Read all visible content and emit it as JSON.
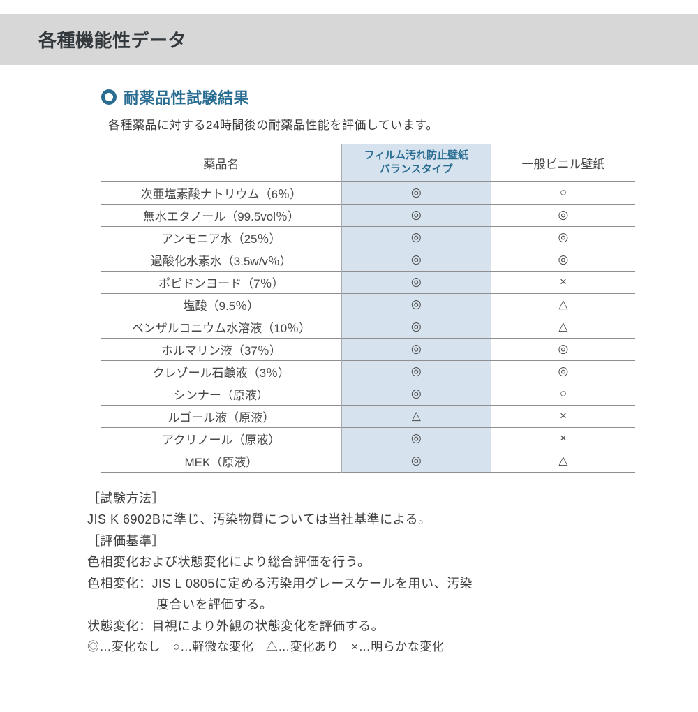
{
  "header": {
    "title": "各種機能性データ"
  },
  "section": {
    "title": "耐薬品性試験結果",
    "subtitle": "各種薬品に対する24時間後の耐薬品性能を評価しています。",
    "bullet_color": "#2a6d92"
  },
  "table": {
    "columns": {
      "name": "薬品名",
      "film_line1": "フィルム汚れ防止壁紙",
      "film_line2": "バランスタイプ",
      "vinyl": "一般ビニル壁紙"
    },
    "highlight_bg": "#d6e2ed",
    "border_color": "#8f8f8f",
    "rows": [
      {
        "name": "次亜塩素酸ナトリウム（6％）",
        "film": "◎",
        "vinyl": "○"
      },
      {
        "name": "無水エタノール（99.5vol％）",
        "film": "◎",
        "vinyl": "◎"
      },
      {
        "name": "アンモニア水（25％）",
        "film": "◎",
        "vinyl": "◎"
      },
      {
        "name": "過酸化水素水（3.5w/v％）",
        "film": "◎",
        "vinyl": "◎"
      },
      {
        "name": "ポピドンヨード（7％）",
        "film": "◎",
        "vinyl": "×"
      },
      {
        "name": "塩酸（9.5％）",
        "film": "◎",
        "vinyl": "△"
      },
      {
        "name": "ベンザルコニウム水溶液（10％）",
        "film": "◎",
        "vinyl": "△"
      },
      {
        "name": "ホルマリン液（37％）",
        "film": "◎",
        "vinyl": "◎"
      },
      {
        "name": "クレゾール石鹸液（3％）",
        "film": "◎",
        "vinyl": "◎"
      },
      {
        "name": "シンナー（原液）",
        "film": "◎",
        "vinyl": "○"
      },
      {
        "name": "ルゴール液（原液）",
        "film": "△",
        "vinyl": "×"
      },
      {
        "name": "アクリノール（原液）",
        "film": "◎",
        "vinyl": "×"
      },
      {
        "name": "MEK（原液）",
        "film": "◎",
        "vinyl": "△"
      }
    ]
  },
  "notes": {
    "method_label": "［試験方法］",
    "method_text": "JIS K 6902Bに準じ、汚染物質については当社基準による。",
    "criteria_label": "［評価基準］",
    "criteria_text": "色相変化および状態変化により総合評価を行う。",
    "hue_line1": "色相変化：JIS L 0805に定める汚染用グレースケールを用い、汚染",
    "hue_line2": "度合いを評価する。",
    "state_text": "状態変化：目視により外観の状態変化を評価する。"
  },
  "legend": {
    "text": "◎…変化なし　○…軽微な変化　△…変化あり　×…明らかな変化"
  }
}
